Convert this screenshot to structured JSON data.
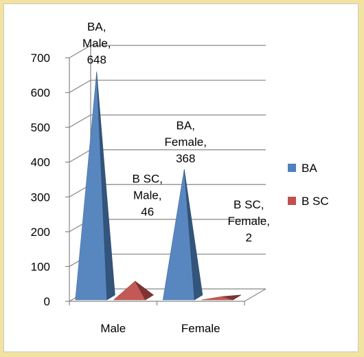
{
  "chart_data": {
    "type": "bar",
    "style": "3d-pyramid",
    "categories": [
      "Male",
      "Female"
    ],
    "series": [
      {
        "name": "BA",
        "values": [
          648,
          368
        ],
        "color": "#4f81bd"
      },
      {
        "name": "B SC",
        "values": [
          46,
          2
        ],
        "color": "#c0504d"
      }
    ],
    "data_labels": [
      [
        "BA,",
        "Male,",
        "648"
      ],
      [
        "BA,",
        "Female,",
        "368"
      ],
      [
        "B SC,",
        "Male,",
        "46"
      ],
      [
        "B SC,",
        "Female,",
        "2"
      ]
    ],
    "ylim": [
      0,
      700
    ],
    "yticks": [
      "0",
      "100",
      "200",
      "300",
      "400",
      "500",
      "600",
      "700"
    ],
    "grid": true,
    "legend": "right"
  }
}
